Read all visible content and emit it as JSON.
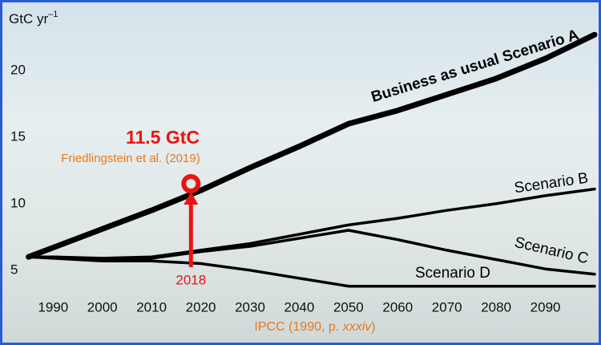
{
  "chart_data": {
    "type": "line",
    "y_label": "GtC yr",
    "y_label_sup": "–1",
    "source": [
      "IPCC (1990, p. ",
      "xxxiv",
      ")"
    ],
    "x": [
      1985,
      1990,
      2000,
      2010,
      2020,
      2030,
      2040,
      2050,
      2060,
      2070,
      2080,
      2090,
      2100
    ],
    "series": [
      {
        "name": "Business as usual Scenario A",
        "color": "#000000",
        "values": [
          6.0,
          6.7,
          8.1,
          9.5,
          11.0,
          12.7,
          14.3,
          16.0,
          17.0,
          18.2,
          19.4,
          20.9,
          22.7
        ]
      },
      {
        "name": "Scenario B",
        "color": "#000000",
        "values": [
          6.0,
          6.0,
          5.9,
          6.0,
          6.5,
          7.0,
          7.7,
          8.4,
          8.9,
          9.5,
          10.0,
          10.6,
          11.1
        ]
      },
      {
        "name": "Scenario C",
        "color": "#000000",
        "values": [
          6.0,
          6.0,
          5.8,
          5.9,
          6.4,
          6.8,
          7.4,
          8.0,
          7.3,
          6.5,
          5.8,
          5.1,
          4.7
        ]
      },
      {
        "name": "Scenario D",
        "color": "#000000",
        "values": [
          6.0,
          5.9,
          5.7,
          5.7,
          5.5,
          5.0,
          4.4,
          3.8,
          3.8,
          3.8,
          3.8,
          3.8,
          3.8
        ]
      }
    ],
    "annotation": {
      "x": 2018,
      "y": 11.5,
      "label": "11.5 GtC",
      "source": "Friedlingstein et al. (2019)",
      "color": "#ee1111"
    },
    "xlim": [
      1981,
      2100
    ],
    "ylim": [
      3,
      25
    ],
    "xticks": [
      1990,
      2000,
      2010,
      2020,
      2030,
      2040,
      2050,
      2060,
      2070,
      2080,
      2090
    ],
    "yticks": [
      5,
      10,
      15,
      20
    ],
    "grid": false
  }
}
